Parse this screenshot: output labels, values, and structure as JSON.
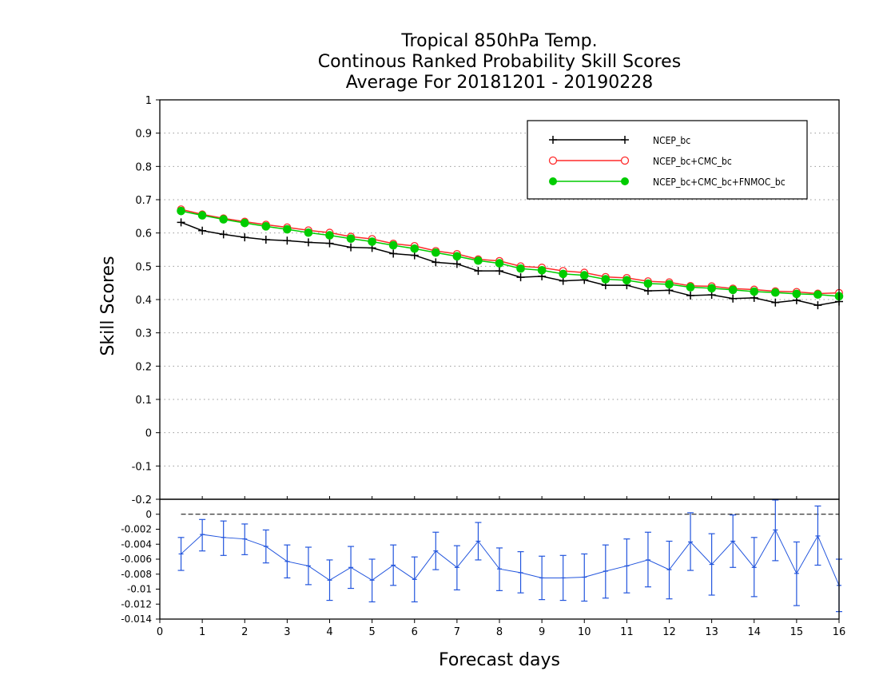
{
  "chart_data": [
    {
      "type": "line",
      "title": "Tropical 850hPa Temp.",
      "subtitle_1": "Continous Ranked Probability Skill Scores",
      "subtitle_2": "Average For 20181201 - 20190228",
      "ylabel": "Skill Scores",
      "xlabel": "Forecast days",
      "xlim": [
        0,
        16
      ],
      "ylim": [
        -0.2,
        1.0
      ],
      "x_ticks": [
        0,
        1,
        2,
        3,
        4,
        5,
        6,
        7,
        8,
        9,
        10,
        11,
        12,
        13,
        14,
        15,
        16
      ],
      "y_ticks": [
        -0.2,
        -0.1,
        0,
        0.1,
        0.2,
        0.3,
        0.4,
        0.5,
        0.6,
        0.7,
        0.8,
        0.9,
        1
      ],
      "y_tick_labels": [
        "-0.2",
        "-0.1",
        "0",
        "0.1",
        "0.2",
        "0.3",
        "0.4",
        "0.5",
        "0.6",
        "0.7",
        "0.8",
        "0.9",
        "1"
      ],
      "grid": "horizontal dotted",
      "legend_position": "top-right",
      "x": [
        0.5,
        1.0,
        1.5,
        2.0,
        2.5,
        3.0,
        3.5,
        4.0,
        4.5,
        5.0,
        5.5,
        6.0,
        6.5,
        7.0,
        7.5,
        8.0,
        8.5,
        9.0,
        9.5,
        10.0,
        10.5,
        11.0,
        11.5,
        12.0,
        12.5,
        13.0,
        13.5,
        14.0,
        14.5,
        15.0,
        15.5,
        16.0
      ],
      "series": [
        {
          "name": "NCEP_bc",
          "color": "#000000",
          "marker": "plus",
          "values": [
            0.632,
            0.607,
            0.596,
            0.587,
            0.58,
            0.577,
            0.572,
            0.569,
            0.557,
            0.555,
            0.538,
            0.533,
            0.512,
            0.507,
            0.486,
            0.486,
            0.467,
            0.47,
            0.456,
            0.459,
            0.443,
            0.443,
            0.426,
            0.428,
            0.412,
            0.414,
            0.403,
            0.405,
            0.391,
            0.398,
            0.383,
            0.394
          ]
        },
        {
          "name": "NCEP_bc+CMC_bc",
          "color": "#ff2a2a",
          "marker": "open-circle",
          "values": [
            0.671,
            0.656,
            0.644,
            0.634,
            0.625,
            0.617,
            0.608,
            0.601,
            0.589,
            0.582,
            0.568,
            0.561,
            0.546,
            0.537,
            0.521,
            0.516,
            0.5,
            0.496,
            0.486,
            0.481,
            0.468,
            0.465,
            0.455,
            0.452,
            0.441,
            0.44,
            0.433,
            0.43,
            0.425,
            0.423,
            0.418,
            0.42
          ]
        },
        {
          "name": "NCEP_bc+CMC_bc+FNMOC_bc",
          "color": "#00cc00",
          "marker": "filled-circle",
          "values": [
            0.666,
            0.653,
            0.641,
            0.63,
            0.62,
            0.611,
            0.601,
            0.593,
            0.583,
            0.574,
            0.563,
            0.553,
            0.541,
            0.53,
            0.517,
            0.509,
            0.493,
            0.488,
            0.477,
            0.473,
            0.461,
            0.458,
            0.448,
            0.446,
            0.437,
            0.434,
            0.429,
            0.424,
            0.421,
            0.417,
            0.415,
            0.41
          ]
        }
      ]
    },
    {
      "type": "line",
      "subplot": "difference panel with error bars",
      "xlim": [
        0,
        16
      ],
      "ylim": [
        -0.014,
        0.002
      ],
      "x_ticks": [
        0,
        1,
        2,
        3,
        4,
        5,
        6,
        7,
        8,
        9,
        10,
        11,
        12,
        13,
        14,
        15,
        16
      ],
      "x_tick_labels": [
        "0",
        "1",
        "2",
        "3",
        "4",
        "5",
        "6",
        "7",
        "8",
        "9",
        "10",
        "11",
        "12",
        "13",
        "14",
        "15",
        "16"
      ],
      "y_ticks": [
        -0.014,
        -0.012,
        -0.01,
        -0.008,
        -0.006,
        -0.004,
        -0.002,
        0
      ],
      "y_tick_labels": [
        "-0.014",
        "-0.012",
        "-0.01",
        "-0.008",
        "-0.006",
        "-0.004",
        "-0.002",
        "0"
      ],
      "zero_line": true,
      "x": [
        0.5,
        1.0,
        1.5,
        2.0,
        2.5,
        3.0,
        3.5,
        4.0,
        4.5,
        5.0,
        5.5,
        6.0,
        6.5,
        7.0,
        7.5,
        8.0,
        8.5,
        9.0,
        9.5,
        10.0,
        10.5,
        11.0,
        11.5,
        12.0,
        12.5,
        13.0,
        13.5,
        14.0,
        14.5,
        15.0,
        15.5,
        16.0
      ],
      "series": [
        {
          "color": "#2255dd",
          "values": [
            -0.0053,
            -0.0027,
            -0.0031,
            -0.0033,
            -0.0043,
            -0.0063,
            -0.0069,
            -0.0088,
            -0.0071,
            -0.0088,
            -0.0068,
            -0.0087,
            -0.0049,
            -0.0071,
            -0.0036,
            -0.0073,
            -0.0078,
            -0.0085,
            -0.0085,
            -0.0084,
            -0.0076,
            -0.0069,
            -0.0061,
            -0.0074,
            -0.0037,
            -0.0067,
            -0.0036,
            -0.0071,
            -0.0021,
            -0.0079,
            -0.0029,
            -0.0095
          ],
          "err_low": [
            -0.0075,
            -0.0049,
            -0.0055,
            -0.0054,
            -0.0065,
            -0.0085,
            -0.0094,
            -0.0115,
            -0.0099,
            -0.0117,
            -0.0095,
            -0.0117,
            -0.0074,
            -0.0101,
            -0.0061,
            -0.0102,
            -0.0105,
            -0.0114,
            -0.0115,
            -0.0116,
            -0.0112,
            -0.0105,
            -0.0097,
            -0.0113,
            -0.0075,
            -0.0108,
            -0.0071,
            -0.011,
            -0.0062,
            -0.0122,
            -0.0068,
            -0.013
          ],
          "err_high": [
            -0.0031,
            -0.0007,
            -0.0009,
            -0.0013,
            -0.0021,
            -0.0041,
            -0.0044,
            -0.0061,
            -0.0043,
            -0.006,
            -0.0041,
            -0.0057,
            -0.0024,
            -0.0042,
            -0.0011,
            -0.0045,
            -0.005,
            -0.0056,
            -0.0055,
            -0.0053,
            -0.0041,
            -0.0033,
            -0.0024,
            -0.0036,
            0.0002,
            -0.0026,
            -0.0001,
            -0.0031,
            0.0019,
            -0.0037,
            0.0011,
            -0.006
          ]
        }
      ]
    }
  ]
}
